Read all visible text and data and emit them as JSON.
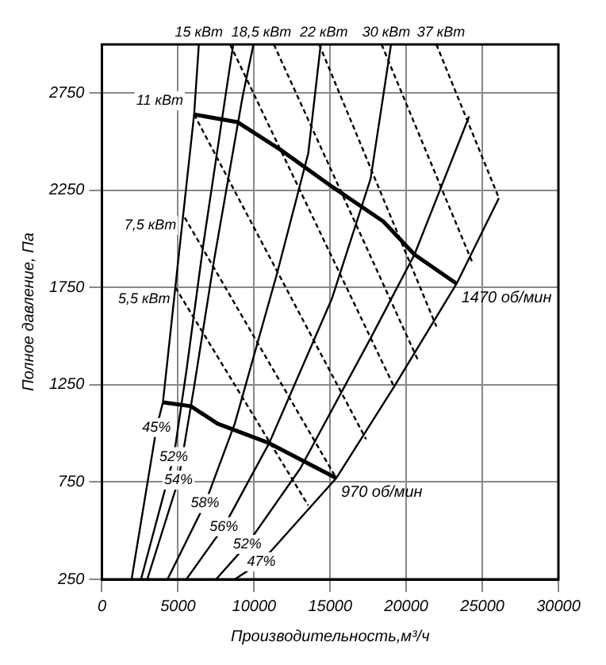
{
  "chart_data": {
    "type": "line",
    "xlabel": "Производительность,м³/ч",
    "ylabel": "Полное давление, Па",
    "xlim": [
      0,
      30000
    ],
    "xticks": [
      0,
      5000,
      10000,
      15000,
      20000,
      25000,
      30000
    ],
    "ylim": [
      250,
      3000
    ],
    "yticks": [
      250,
      750,
      1250,
      1750,
      2250,
      2750
    ],
    "grid": true,
    "legend": false,
    "series": [
      {
        "color": "#000000",
        "line_style": "solid",
        "x": [
          1950,
          3590,
          4010,
          5030,
          6060,
          6370
        ],
        "values": [
          250,
          1030,
          1160,
          1900,
          2640,
          3000
        ]
      },
      {
        "color": "#000000",
        "line_style": "solid",
        "x": [
          2570,
          4720,
          5550,
          6680,
          8110,
          8630
        ],
        "values": [
          250,
          880,
          1320,
          1980,
          2730,
          3000
        ]
      },
      {
        "color": "#000000",
        "line_style": "solid",
        "x": [
          2980,
          5030,
          6060,
          7390,
          9240,
          9960
        ],
        "values": [
          250,
          760,
          1240,
          1900,
          2730,
          3000
        ]
      },
      {
        "color": "#000000",
        "line_style": "solid",
        "x": [
          4310,
          6780,
          8730,
          11500,
          13560,
          14380
        ],
        "values": [
          250,
          640,
          1050,
          1820,
          2440,
          3000
        ]
      },
      {
        "color": "#000000",
        "line_style": "solid",
        "x": [
          5550,
          8010,
          10990,
          15100,
          17660,
          19000
        ],
        "values": [
          250,
          520,
          950,
          1690,
          2310,
          3000
        ]
      },
      {
        "color": "#000000",
        "line_style": "solid",
        "x": [
          7500,
          9550,
          13040,
          17660,
          20540,
          24130
        ],
        "values": [
          250,
          430,
          820,
          1490,
          1920,
          2630
        ]
      },
      {
        "color": "#000000",
        "line_style": "solid",
        "x": [
          8730,
          10480,
          15400,
          19200,
          23310,
          26090
        ],
        "values": [
          250,
          340,
          770,
          1240,
          1770,
          2210
        ]
      },
      {
        "color": "#000000",
        "line_style": "dashed",
        "x": [
          4830,
          13560
        ],
        "values": [
          1750,
          630
        ]
      },
      {
        "color": "#000000",
        "line_style": "dashed",
        "x": [
          5440,
          15400
        ],
        "values": [
          2110,
          770
        ]
      },
      {
        "color": "#000000",
        "line_style": "dashed",
        "x": [
          6060,
          17360
        ],
        "values": [
          2640,
          970
        ]
      },
      {
        "color": "#000000",
        "line_style": "dashed",
        "x": [
          8420,
          19200
        ],
        "values": [
          3000,
          1240
        ]
      },
      {
        "color": "#000000",
        "line_style": "dashed",
        "x": [
          11300,
          20750
        ],
        "values": [
          3000,
          1380
        ]
      },
      {
        "color": "#000000",
        "line_style": "dashed",
        "x": [
          14280,
          21980
        ],
        "values": [
          3000,
          1550
        ]
      },
      {
        "color": "#000000",
        "line_style": "dashed",
        "x": [
          18380,
          24340
        ],
        "values": [
          3000,
          1880
        ]
      },
      {
        "color": "#000000",
        "line_style": "dashed",
        "x": [
          21980,
          26090
        ],
        "values": [
          3000,
          2210
        ]
      },
      {
        "name": "1470 об/мин",
        "color": "#000000",
        "line_style": "solid",
        "x": [
          6060,
          8930,
          11710,
          15100,
          18490,
          20540,
          23310
        ],
        "values": [
          2640,
          2600,
          2460,
          2270,
          2090,
          1920,
          1770
        ]
      },
      {
        "name": "970 об/мин",
        "color": "#000000",
        "line_style": "solid",
        "x": [
          4010,
          5850,
          7600,
          10990,
          15400
        ],
        "values": [
          1160,
          1140,
          1050,
          950,
          770
        ]
      }
    ],
    "annotations": [
      {
        "text": "45%",
        "x": 3590,
        "y": 1030
      },
      {
        "text": "52%",
        "x": 4720,
        "y": 880
      },
      {
        "text": "54%",
        "x": 5030,
        "y": 760
      },
      {
        "text": "58%",
        "x": 6780,
        "y": 640
      },
      {
        "text": "56%",
        "x": 8010,
        "y": 520
      },
      {
        "text": "52%",
        "x": 9550,
        "y": 430
      },
      {
        "text": "47%",
        "x": 10480,
        "y": 340
      },
      {
        "text": "5,5 кВт",
        "x": 2770,
        "y": 1690
      },
      {
        "text": "7,5 кВт",
        "x": 3180,
        "y": 2070
      },
      {
        "text": "11 кВт",
        "x": 3800,
        "y": 2710
      },
      {
        "text": "15 кВт",
        "x": 6370,
        "y": 3000
      },
      {
        "text": "18,5 кВт",
        "x": 10480,
        "y": 3000
      },
      {
        "text": "22 кВт",
        "x": 14580,
        "y": 3000
      },
      {
        "text": "30 кВт",
        "x": 18690,
        "y": 3000
      },
      {
        "text": "37 кВт",
        "x": 22290,
        "y": 3000
      }
    ]
  }
}
